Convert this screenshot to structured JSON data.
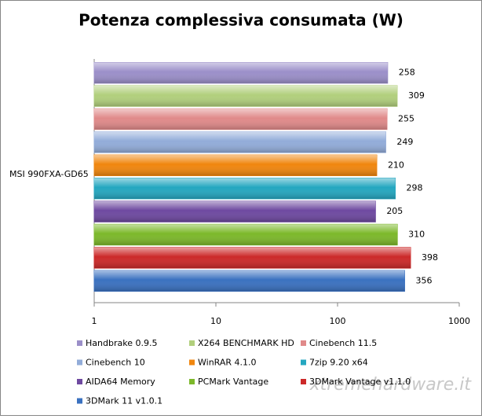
{
  "chart_data": {
    "type": "bar",
    "orientation": "horizontal",
    "title": "Potenza complessiva consumata (W)",
    "categories": [
      "MSI 990FXA-GD65"
    ],
    "series": [
      {
        "name": "Handbrake 0.9.5",
        "color": "#9b8fc9",
        "values": [
          258
        ]
      },
      {
        "name": "X264 BENCHMARK HD",
        "color": "#b1cf7c",
        "values": [
          309
        ]
      },
      {
        "name": "Cinebench 11.5",
        "color": "#e08a8a",
        "values": [
          255
        ]
      },
      {
        "name": "Cinebench 10",
        "color": "#92acd9",
        "values": [
          249
        ]
      },
      {
        "name": "WinRAR 4.1.0",
        "color": "#f0860e",
        "values": [
          210
        ]
      },
      {
        "name": "7zip 9.20 x64",
        "color": "#24a7c0",
        "values": [
          298
        ]
      },
      {
        "name": "AIDA64 Memory",
        "color": "#6e49a0",
        "values": [
          205
        ]
      },
      {
        "name": "PCMark Vantage",
        "color": "#7cb82a",
        "values": [
          310
        ]
      },
      {
        "name": "3DMark Vantage v1.1.0",
        "color": "#cc2929",
        "values": [
          398
        ]
      },
      {
        "name": "3DMark 11 v1.0.1",
        "color": "#3a71c0",
        "values": [
          356
        ]
      }
    ],
    "xscale": "log",
    "xlim": [
      1,
      1000
    ],
    "xticks": [
      1,
      10,
      100,
      1000
    ],
    "legend": "bottom",
    "watermark": "xtremehardware.it"
  }
}
